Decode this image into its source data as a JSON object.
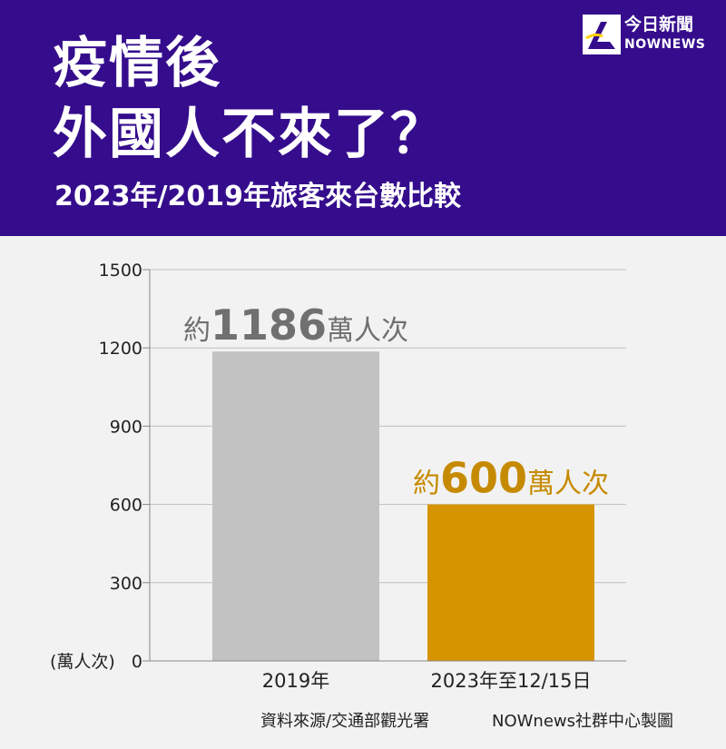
{
  "header": {
    "title_line1": "疫情後",
    "title_line2": "外國人不來了？",
    "subtitle": "2023年/2019年旅客來台數比較",
    "logo_cn": "今日新聞",
    "logo_en": "NOWNEWS",
    "logo_icon": "nownews-logo-icon"
  },
  "colors": {
    "header_bg": "#350d8c",
    "bar_2019": "#c2c2c2",
    "bar_2023": "#d69400",
    "label_2019": "#707070",
    "label_2023": "#c68a00",
    "background": "#f2f2f2"
  },
  "chart_data": {
    "type": "bar",
    "categories": [
      "2019年",
      "2023年至12/15日"
    ],
    "values": [
      1186,
      600
    ],
    "ylabel": "(萬人次)",
    "ylim": [
      0,
      1500
    ],
    "yticks": [
      0,
      300,
      600,
      900,
      1200,
      1500
    ],
    "grid": true,
    "data_labels": [
      {
        "prefix": "約",
        "value": "1186",
        "suffix": "萬人次"
      },
      {
        "prefix": "約",
        "value": "600",
        "suffix": "萬人次"
      }
    ]
  },
  "footer": {
    "source": "資料來源/交通部觀光署",
    "credit": "NOWnews社群中心製圖"
  }
}
